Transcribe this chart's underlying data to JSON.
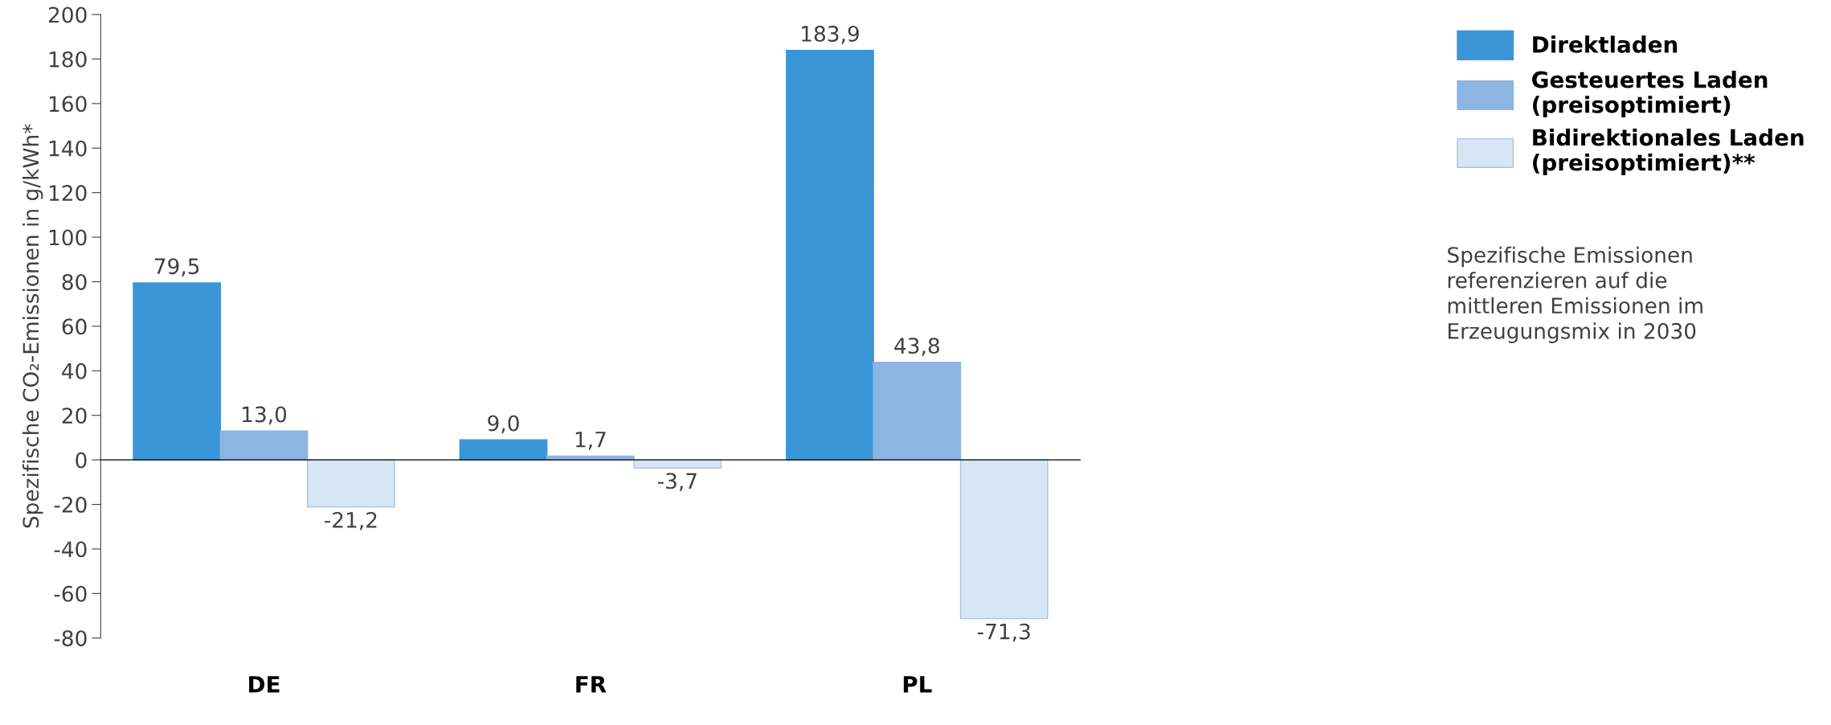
{
  "chart_data": {
    "type": "bar",
    "ylabel": "Spezifische CO₂-Emissionen in g/kWh*",
    "categories": [
      "DE",
      "FR",
      "PL"
    ],
    "series": [
      {
        "name": "Direktladen",
        "color": "#3a96d7",
        "values": [
          79.5,
          9.0,
          183.9
        ],
        "value_labels": [
          "79,5",
          "9,0",
          "183,9"
        ]
      },
      {
        "name": "Gesteuertes Laden\n(preisoptimiert)",
        "color": "#8db5e1",
        "values": [
          13.0,
          1.7,
          43.8
        ],
        "value_labels": [
          "13,0",
          "1,7",
          "43,8"
        ]
      },
      {
        "name": "Bidirektionales Laden\n(preisoptimiert)**",
        "color": "#d7e6f5",
        "values": [
          -21.2,
          -3.7,
          -71.3
        ],
        "value_labels": [
          "-21,2",
          "-3,7",
          "-71,3"
        ]
      }
    ],
    "ylim": [
      -80,
      200
    ],
    "yticks": [
      -80,
      -60,
      -40,
      -20,
      0,
      20,
      40,
      60,
      80,
      100,
      120,
      140,
      160,
      180,
      200
    ],
    "legend": "right",
    "annotations": [
      "Spezifische Emissionen\nreferenzieren auf die\nmittleren Emissionen im\nErzeugungsmix in 2030"
    ]
  }
}
